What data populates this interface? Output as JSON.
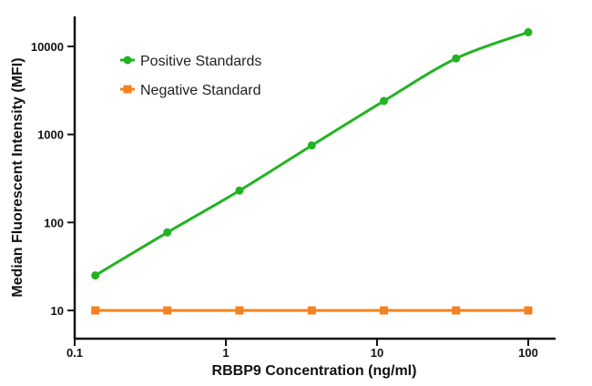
{
  "chart_data": {
    "type": "line",
    "title": "",
    "xlabel": "RBBP9 Concentration (ng/ml)",
    "ylabel": "Median Fluorescent Intensity (MFI)",
    "xscale": "log",
    "yscale": "log",
    "xlim": [
      0.1,
      100
    ],
    "ylim": [
      5,
      20000
    ],
    "xticks": [
      {
        "value": 0.1,
        "label": "0.1"
      },
      {
        "value": 1,
        "label": "1"
      },
      {
        "value": 10,
        "label": "10"
      },
      {
        "value": 100,
        "label": "100"
      }
    ],
    "yticks": [
      {
        "value": 10,
        "label": "10"
      },
      {
        "value": 100,
        "label": "100"
      },
      {
        "value": 1000,
        "label": "1000"
      },
      {
        "value": 10000,
        "label": "10000"
      }
    ],
    "grid": false,
    "legend": "top-left",
    "series": [
      {
        "name": "Positive Standards",
        "color": "#22b322",
        "marker": "circle",
        "x": [
          0.137,
          0.41,
          1.23,
          3.7,
          11.1,
          33.3,
          100
        ],
        "y": [
          25,
          77,
          230,
          750,
          2400,
          7300,
          14500
        ]
      },
      {
        "name": "Negative Standard",
        "color": "#f58220",
        "marker": "square",
        "x": [
          0.137,
          0.41,
          1.23,
          3.7,
          11.1,
          33.3,
          100
        ],
        "y": [
          10,
          10,
          10,
          10,
          10,
          10,
          10
        ]
      }
    ]
  }
}
